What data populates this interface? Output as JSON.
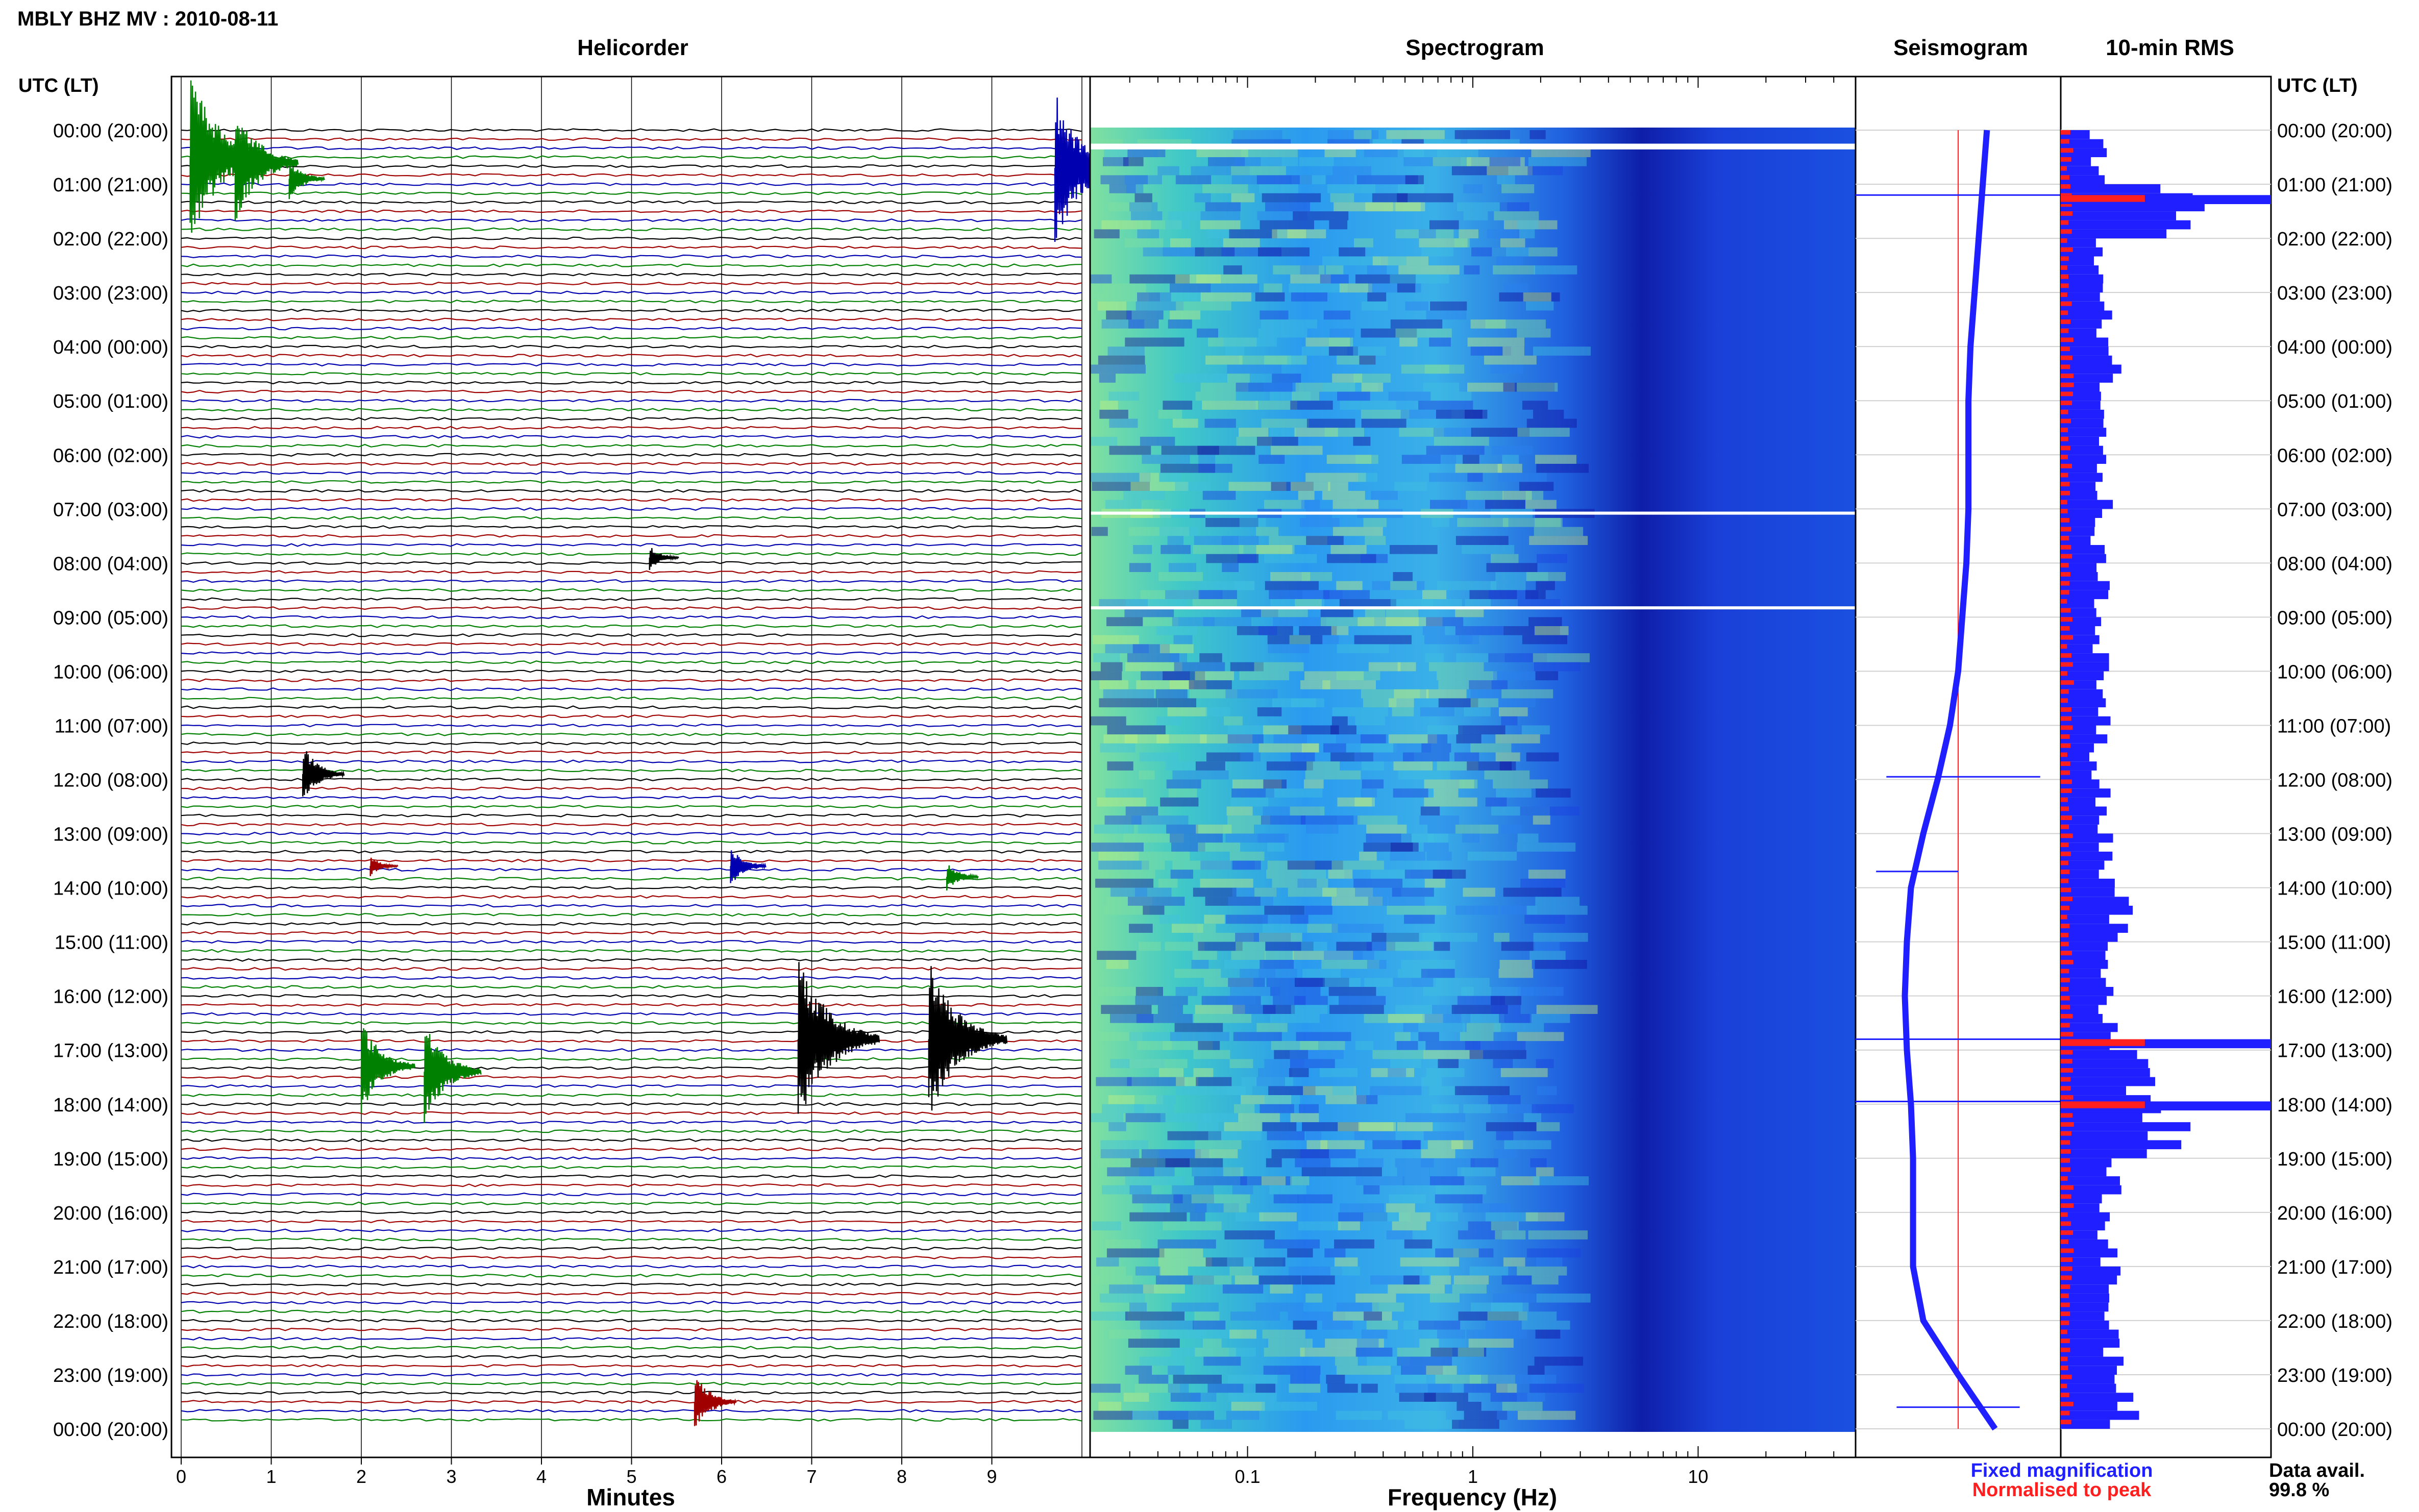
{
  "title": "MBLY BHZ MV : 2010-08-11",
  "panels": {
    "helicorder": "Helicorder",
    "spectrogram": "Spectrogram",
    "seismogram": "Seismogram",
    "rms": "10-min RMS"
  },
  "time_axis_label": "UTC (LT)",
  "time_labels": [
    "00:00 (20:00)",
    "01:00 (21:00)",
    "02:00 (22:00)",
    "03:00 (23:00)",
    "04:00 (00:00)",
    "05:00 (01:00)",
    "06:00 (02:00)",
    "07:00 (03:00)",
    "08:00 (04:00)",
    "09:00 (05:00)",
    "10:00 (06:00)",
    "11:00 (07:00)",
    "12:00 (08:00)",
    "13:00 (09:00)",
    "14:00 (10:00)",
    "15:00 (11:00)",
    "16:00 (12:00)",
    "17:00 (13:00)",
    "18:00 (14:00)",
    "19:00 (15:00)",
    "20:00 (16:00)",
    "21:00 (17:00)",
    "22:00 (18:00)",
    "23:00 (19:00)",
    "00:00 (20:00)"
  ],
  "helicorder_xlabel": "Minutes",
  "helicorder_ticks": [
    "0",
    "1",
    "2",
    "3",
    "4",
    "5",
    "6",
    "7",
    "8",
    "9"
  ],
  "spectrogram_xlabel": "Frequency (Hz)",
  "spectrogram_ticks": [
    "0.1",
    "1",
    "10"
  ],
  "legend": {
    "fixed": "Fixed magnification",
    "normalised": "Normalised to peak",
    "fixed_color": "#1f1fff",
    "normalised_color": "#ff1f1f"
  },
  "availability": {
    "label": "Data avail.",
    "value": "99.8 %"
  },
  "trace_colors": [
    "#000000",
    "#a00000",
    "#0000b0",
    "#008000"
  ],
  "chart_data": [
    {
      "type": "line",
      "title": "Helicorder",
      "xlabel": "Minutes",
      "x_range": [
        0,
        10
      ],
      "rows": 144,
      "row_interval_minutes": 10,
      "events": [
        {
          "hour": 0.5,
          "minute": 0.1,
          "amplitude": 1.0,
          "color": "#008000"
        },
        {
          "hour": 0.6,
          "minute": 0.6,
          "amplitude": 0.7,
          "color": "#008000"
        },
        {
          "hour": 0.9,
          "minute": 1.2,
          "amplitude": 0.25,
          "color": "#008000"
        },
        {
          "hour": 0.7,
          "minute": 9.7,
          "amplitude": 0.9,
          "color": "#0000b0"
        },
        {
          "hour": 7.9,
          "minute": 5.2,
          "amplitude": 0.15,
          "color": "#000000"
        },
        {
          "hour": 11.9,
          "minute": 1.35,
          "amplitude": 0.35,
          "color": "#000000"
        },
        {
          "hour": 13.6,
          "minute": 2.1,
          "amplitude": 0.12,
          "color": "#a00000"
        },
        {
          "hour": 13.6,
          "minute": 6.1,
          "amplitude": 0.25,
          "color": "#0000b0"
        },
        {
          "hour": 13.8,
          "minute": 8.5,
          "amplitude": 0.18,
          "color": "#008000"
        },
        {
          "hour": 16.8,
          "minute": 6.85,
          "amplitude": 1.0,
          "color": "#000000"
        },
        {
          "hour": 16.8,
          "minute": 8.3,
          "amplitude": 0.95,
          "color": "#000000"
        },
        {
          "hour": 17.3,
          "minute": 2.0,
          "amplitude": 0.55,
          "color": "#008000"
        },
        {
          "hour": 17.4,
          "minute": 2.7,
          "amplitude": 0.6,
          "color": "#008000"
        },
        {
          "hour": 23.5,
          "minute": 5.7,
          "amplitude": 0.35,
          "color": "#a00000"
        }
      ]
    },
    {
      "type": "heatmap",
      "title": "Spectrogram",
      "xlabel": "Frequency (Hz)",
      "x_scale": "log",
      "x_range": [
        0.02,
        50
      ],
      "y_range_hours": [
        0,
        24
      ],
      "colormap": [
        "#1010a0",
        "#1a40e0",
        "#2a80f0",
        "#40c0e0",
        "#80e0a0",
        "#c0f080"
      ]
    },
    {
      "type": "line",
      "title": "Seismogram",
      "series": [
        {
          "name": "Fixed magnification",
          "color": "#1f1fff",
          "hours": [
            0,
            1,
            2,
            3,
            4,
            5,
            6,
            7,
            8,
            9,
            10,
            11,
            12,
            13,
            14,
            15,
            16,
            17,
            18,
            19,
            20,
            21,
            22,
            23,
            24
          ],
          "values": [
            0.64,
            0.62,
            0.6,
            0.58,
            0.56,
            0.55,
            0.55,
            0.55,
            0.54,
            0.52,
            0.5,
            0.46,
            0.4,
            0.33,
            0.27,
            0.25,
            0.24,
            0.25,
            0.27,
            0.28,
            0.28,
            0.28,
            0.33,
            0.5,
            0.68
          ]
        }
      ],
      "reference_line": {
        "name": "Normalised to peak",
        "color": "#ff1f1f",
        "value": 0.5
      }
    },
    {
      "type": "bar",
      "title": "10-min RMS",
      "orientation": "horizontal",
      "hours": [
        0,
        1,
        2,
        3,
        4,
        5,
        6,
        7,
        8,
        9,
        10,
        11,
        12,
        13,
        14,
        15,
        16,
        17,
        18,
        19,
        20,
        21,
        22,
        23
      ],
      "values": [
        0.18,
        0.55,
        0.2,
        0.22,
        0.24,
        0.22,
        0.2,
        0.18,
        0.2,
        0.2,
        0.2,
        0.18,
        0.2,
        0.22,
        0.3,
        0.24,
        0.22,
        0.4,
        0.5,
        0.24,
        0.22,
        0.24,
        0.26,
        0.3
      ],
      "peaks": [
        {
          "hour": 1.2,
          "value": 1.0
        },
        {
          "hour": 16.8,
          "value": 1.0
        },
        {
          "hour": 17.95,
          "value": 1.0
        }
      ]
    }
  ]
}
